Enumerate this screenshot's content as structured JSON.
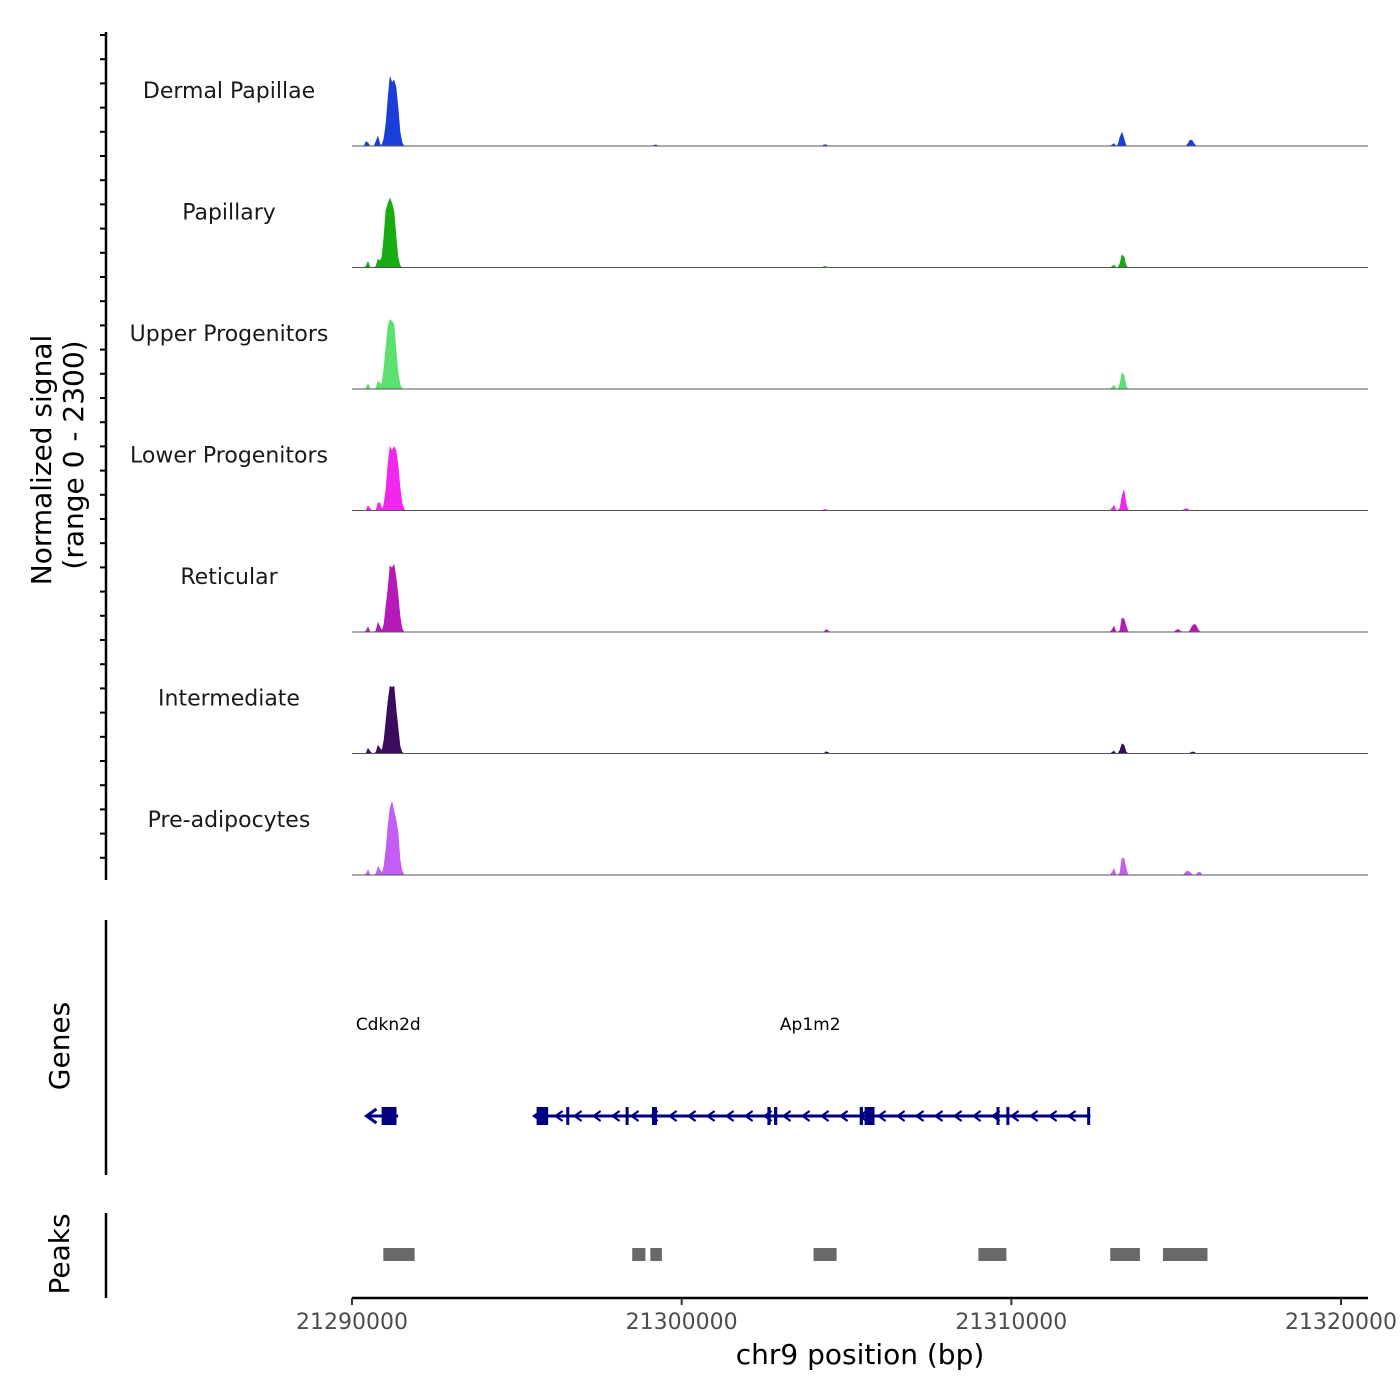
{
  "chart_data": {
    "type": "area",
    "title": "",
    "xlabel": "chr9 position (bp)",
    "ylabel": "Normalized signal",
    "ylabel_sub": "(range 0 - 2300)",
    "ylim": [
      0,
      2300
    ],
    "xlim": [
      21290000,
      21320000
    ],
    "x_ticks": [
      21290000,
      21300000,
      21310000,
      21320000
    ],
    "x_tick_labels": [
      "21290000",
      "21300000",
      "21310000",
      "21320000"
    ],
    "tracks": [
      {
        "name": "Dermal Papillae",
        "color": "#1a3fd9",
        "peaks": [
          {
            "x": 21291230,
            "height": 2300,
            "width": 420
          },
          {
            "x": 21290780,
            "height": 300,
            "width": 120
          },
          {
            "x": 21290450,
            "height": 150,
            "width": 100
          },
          {
            "x": 21313350,
            "height": 420,
            "width": 180
          },
          {
            "x": 21313100,
            "height": 80,
            "width": 100
          },
          {
            "x": 21315450,
            "height": 180,
            "width": 200
          },
          {
            "x": 21304350,
            "height": 50,
            "width": 100
          },
          {
            "x": 21299200,
            "height": 40,
            "width": 100
          }
        ]
      },
      {
        "name": "Papillary",
        "color": "#1aab12",
        "peaks": [
          {
            "x": 21291150,
            "height": 2250,
            "width": 420
          },
          {
            "x": 21290800,
            "height": 300,
            "width": 120
          },
          {
            "x": 21290480,
            "height": 180,
            "width": 100
          },
          {
            "x": 21313380,
            "height": 400,
            "width": 170
          },
          {
            "x": 21313100,
            "height": 80,
            "width": 100
          },
          {
            "x": 21304350,
            "height": 40,
            "width": 100
          }
        ]
      },
      {
        "name": "Upper Progenitors",
        "color": "#5ce070",
        "peaks": [
          {
            "x": 21291180,
            "height": 2200,
            "width": 420
          },
          {
            "x": 21290800,
            "height": 280,
            "width": 120
          },
          {
            "x": 21290480,
            "height": 160,
            "width": 100
          },
          {
            "x": 21313380,
            "height": 560,
            "width": 170
          },
          {
            "x": 21313100,
            "height": 120,
            "width": 100
          }
        ]
      },
      {
        "name": "Lower Progenitors",
        "color": "#f227ee",
        "peaks": [
          {
            "x": 21291250,
            "height": 2250,
            "width": 440
          },
          {
            "x": 21290820,
            "height": 300,
            "width": 120
          },
          {
            "x": 21290500,
            "height": 150,
            "width": 100
          },
          {
            "x": 21313400,
            "height": 640,
            "width": 170
          },
          {
            "x": 21313100,
            "height": 160,
            "width": 100
          },
          {
            "x": 21304350,
            "height": 40,
            "width": 100
          },
          {
            "x": 21315300,
            "height": 60,
            "width": 150
          }
        ]
      },
      {
        "name": "Reticular",
        "color": "#b51ab8",
        "peaks": [
          {
            "x": 21291230,
            "height": 2250,
            "width": 420
          },
          {
            "x": 21290800,
            "height": 300,
            "width": 120
          },
          {
            "x": 21290480,
            "height": 150,
            "width": 100
          },
          {
            "x": 21313400,
            "height": 500,
            "width": 170
          },
          {
            "x": 21313100,
            "height": 180,
            "width": 100
          },
          {
            "x": 21315550,
            "height": 280,
            "width": 220
          },
          {
            "x": 21315050,
            "height": 80,
            "width": 150
          },
          {
            "x": 21304400,
            "height": 80,
            "width": 100
          }
        ]
      },
      {
        "name": "Intermediate",
        "color": "#3b0b5c",
        "peaks": [
          {
            "x": 21291200,
            "height": 2200,
            "width": 420
          },
          {
            "x": 21290800,
            "height": 300,
            "width": 120
          },
          {
            "x": 21290500,
            "height": 160,
            "width": 100
          },
          {
            "x": 21313380,
            "height": 340,
            "width": 170
          },
          {
            "x": 21313100,
            "height": 80,
            "width": 100
          },
          {
            "x": 21304400,
            "height": 60,
            "width": 100
          },
          {
            "x": 21315500,
            "height": 50,
            "width": 150
          }
        ]
      },
      {
        "name": "Pre-adipocytes",
        "color": "#c45cf6",
        "peaks": [
          {
            "x": 21291230,
            "height": 2300,
            "width": 430
          },
          {
            "x": 21290800,
            "height": 300,
            "width": 120
          },
          {
            "x": 21290480,
            "height": 150,
            "width": 100
          },
          {
            "x": 21313400,
            "height": 620,
            "width": 170
          },
          {
            "x": 21313100,
            "height": 200,
            "width": 100
          },
          {
            "x": 21315350,
            "height": 120,
            "width": 200
          },
          {
            "x": 21315700,
            "height": 100,
            "width": 120
          }
        ]
      }
    ],
    "genes_label": "Genes",
    "genes": [
      {
        "name": "Cdkn2d",
        "label_x": 21291100,
        "start": 21290500,
        "end": 21291400,
        "strand": "-",
        "color": "#000080",
        "exons": [
          [
            21290900,
            21291350
          ]
        ]
      },
      {
        "name": "Ap1m2",
        "label_x": 21303900,
        "start": 21295600,
        "end": 21312400,
        "strand": "-",
        "color": "#000080",
        "exons": [
          [
            21295600,
            21295950
          ],
          [
            21296500,
            21296560
          ],
          [
            21298300,
            21298360
          ],
          [
            21299100,
            21299250
          ],
          [
            21302600,
            21302700
          ],
          [
            21302800,
            21302900
          ],
          [
            21305400,
            21305500
          ],
          [
            21305550,
            21305850
          ],
          [
            21309550,
            21309620
          ],
          [
            21309850,
            21309920
          ],
          [
            21312300,
            21312360
          ]
        ]
      }
    ],
    "peaks_label": "Peaks",
    "peak_regions": [
      [
        21290950,
        21291900
      ],
      [
        21298500,
        21298900
      ],
      [
        21299050,
        21299400
      ],
      [
        21304000,
        21304700
      ],
      [
        21309000,
        21309850
      ],
      [
        21313000,
        21313900
      ],
      [
        21314600,
        21315950
      ]
    ],
    "peak_color": "#696969"
  }
}
